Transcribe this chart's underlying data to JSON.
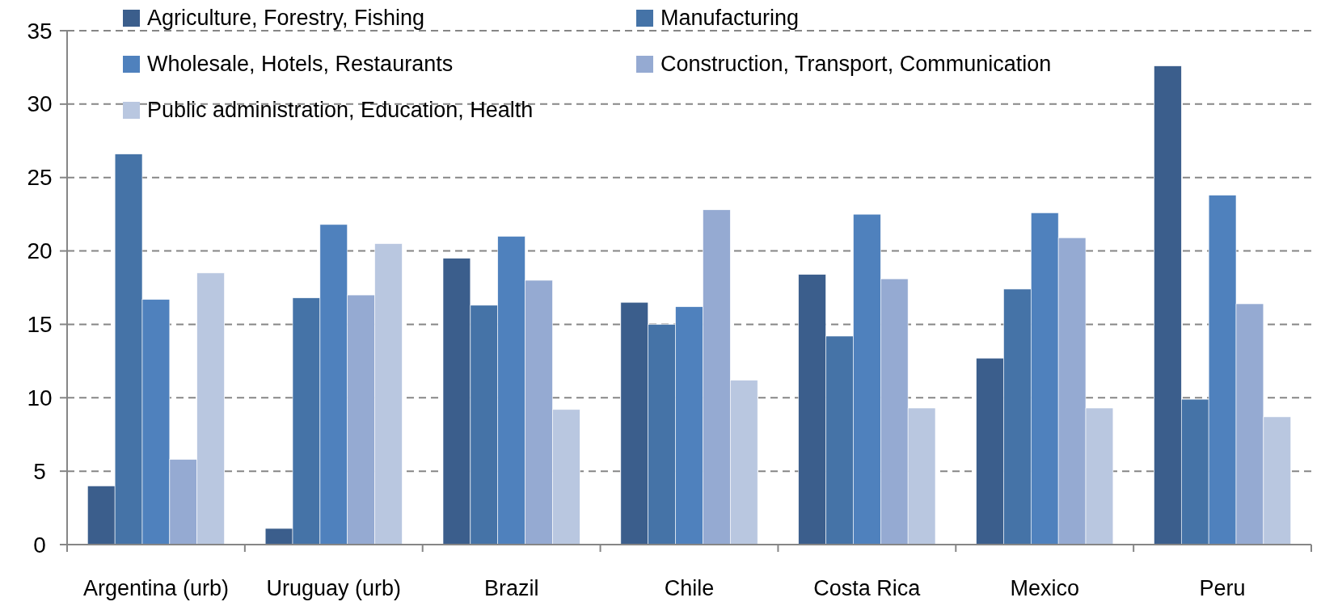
{
  "chart_data": {
    "type": "bar",
    "categories": [
      "Argentina (urb)",
      "Uruguay (urb)",
      "Brazil",
      "Chile",
      "Costa Rica",
      "Mexico",
      "Peru"
    ],
    "series": [
      {
        "name": "Agriculture, Forestry, Fishing",
        "color": "#3b5e8c",
        "values": [
          4.0,
          1.1,
          19.5,
          16.5,
          18.4,
          12.7,
          32.6
        ]
      },
      {
        "name": "Manufacturing",
        "color": "#4573a7",
        "values": [
          26.6,
          16.8,
          16.3,
          15.0,
          14.2,
          17.4,
          9.9
        ]
      },
      {
        "name": "Wholesale, Hotels, Restaurants",
        "color": "#4f81bd",
        "values": [
          16.7,
          21.8,
          21.0,
          16.2,
          22.5,
          22.6,
          23.8
        ]
      },
      {
        "name": "Construction, Transport, Communication",
        "color": "#95aad2",
        "values": [
          5.8,
          17.0,
          18.0,
          22.8,
          18.1,
          20.9,
          16.4
        ]
      },
      {
        "name": "Public administration, Education, Health",
        "color": "#b9c7e0",
        "values": [
          18.5,
          20.5,
          9.2,
          11.2,
          9.3,
          9.3,
          8.7
        ]
      }
    ],
    "ylim": [
      0,
      35
    ],
    "yticks": [
      0,
      5,
      10,
      15,
      20,
      25,
      30,
      35
    ],
    "grid": "y",
    "legend": "top"
  }
}
